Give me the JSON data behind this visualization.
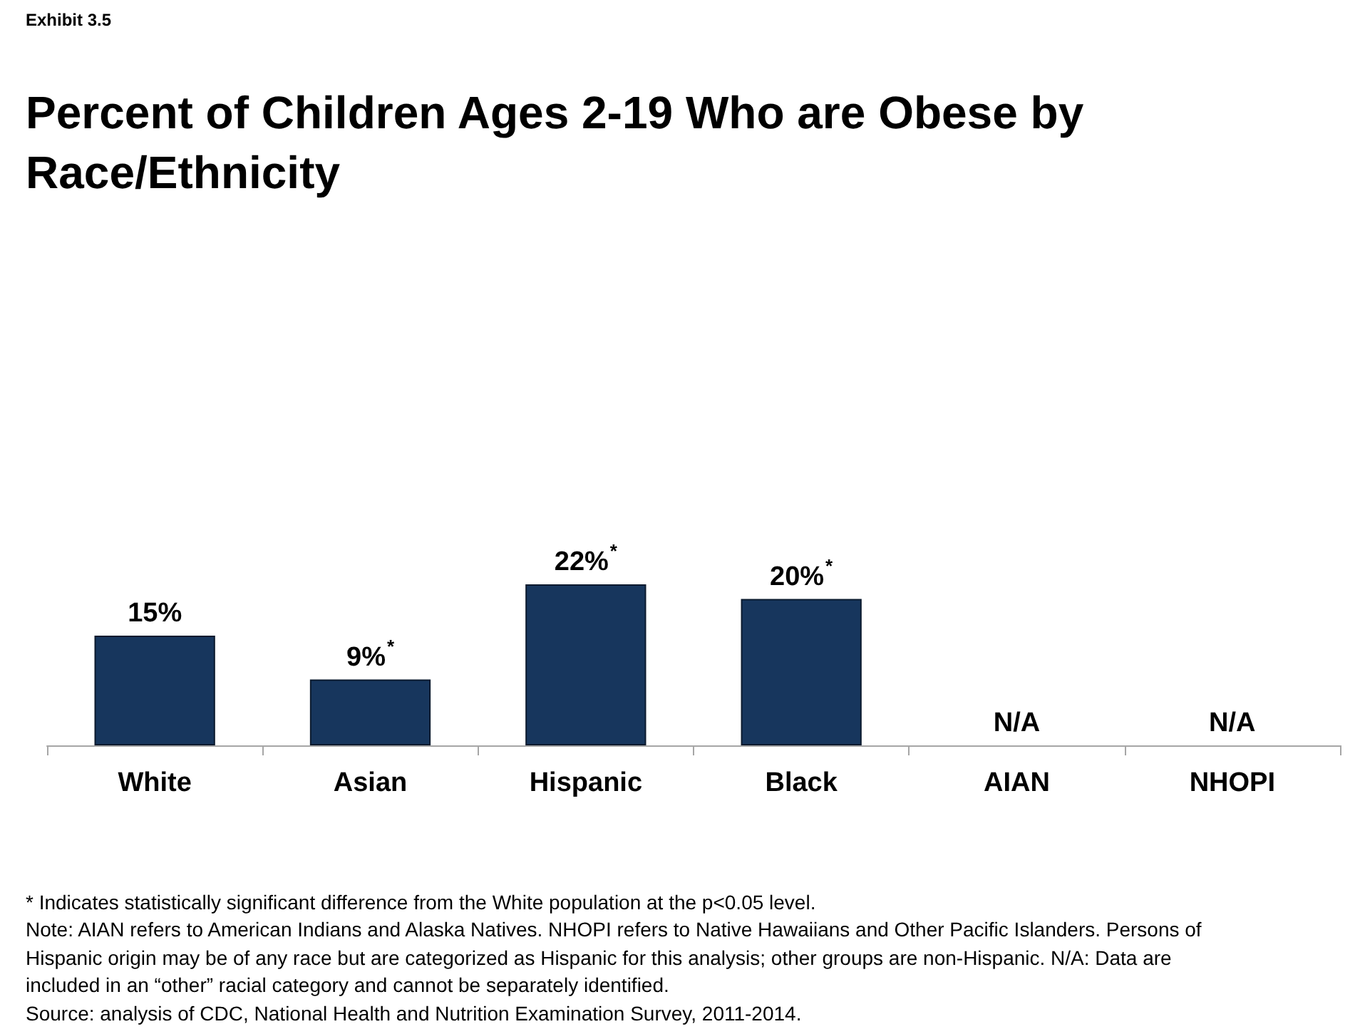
{
  "chart_data": {
    "type": "bar",
    "subtitle": "Exhibit 3.5",
    "title": "Percent of Children Ages 2-19 Who are Obese by Race/Ethnicity",
    "categories": [
      "White",
      "Asian",
      "Hispanic",
      "Black",
      "AIAN",
      "NHOPI"
    ],
    "values": [
      15,
      9,
      22,
      20,
      null,
      null
    ],
    "color": "#17365d",
    "value_labels": [
      "15%",
      "9%$^{*}$",
      "22%$^{*}$",
      "20%$^{*}$",
      "N/A",
      "N/A"
    ],
    "tick_labels": "x",
    "annotations": [
      "* Indicates statistically significant difference from the White population at the p<0.05 level.",
      "Note: AIAN refers to American Indians and Alaska Natives. NHOPI refers to Native Hawaiians and Other Pacific Islanders. Persons of Hispanic origin may be of any race but are categorized as Hispanic for this analysis; other groups are non-Hispanic. N/A: Data are included in an “other” racial category and cannot be separately identified.",
      "Source: analysis of CDC, National Health and Nutrition Examination Survey, 2011-2014."
    ]
  }
}
